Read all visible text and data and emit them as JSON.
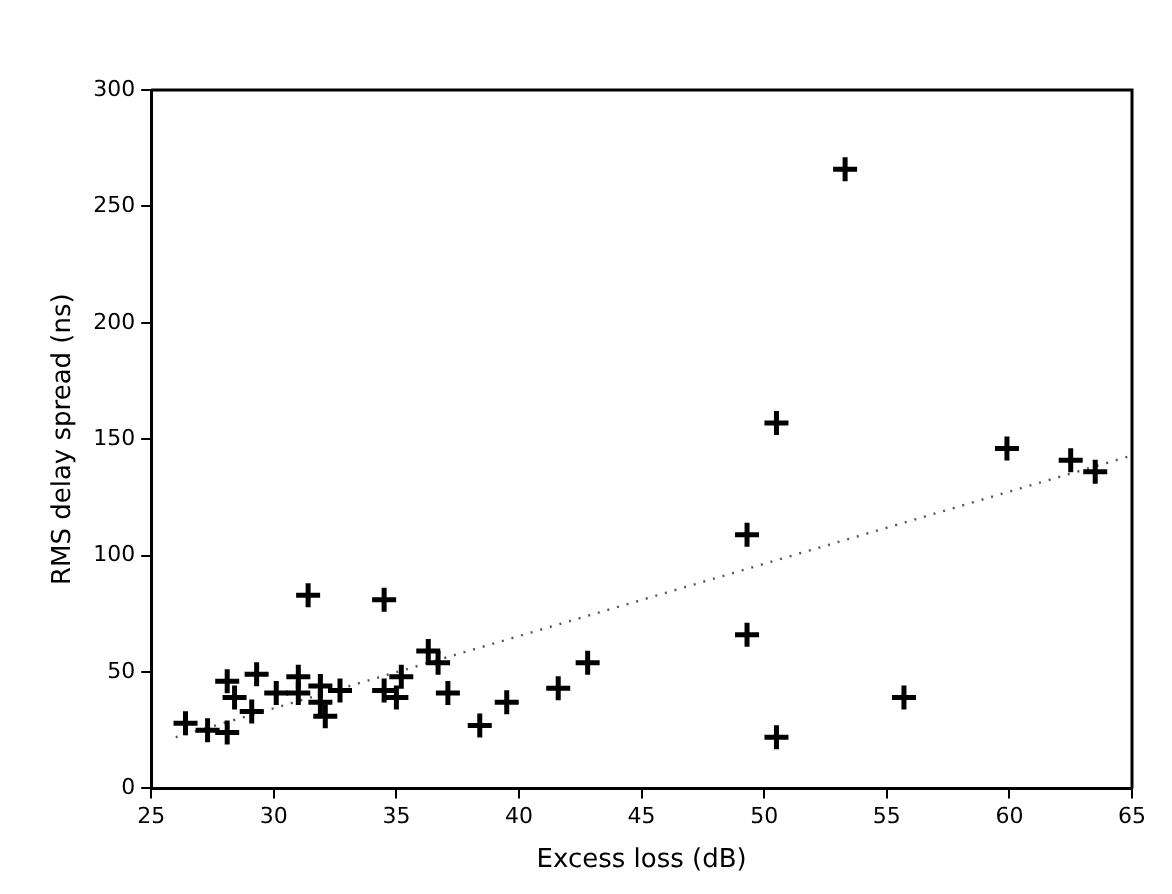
{
  "chart_data": {
    "type": "scatter",
    "xlabel": "Excess loss (dB)",
    "ylabel": "RMS delay spread (ns)",
    "xlim": [
      25,
      65
    ],
    "xticks": [
      25,
      30,
      35,
      40,
      45,
      50,
      55,
      60,
      65
    ],
    "ylim": [
      0,
      300
    ],
    "yticks": [
      0,
      50,
      100,
      150,
      200,
      250,
      300
    ],
    "grid": false,
    "legend": false,
    "series": [
      {
        "marker": "cross",
        "color": "#000000",
        "x": [
          26.4,
          27.3,
          28.1,
          28.1,
          28.4,
          29.1,
          29.3,
          30.1,
          31.0,
          31.0,
          31.4,
          31.9,
          31.9,
          32.1,
          32.7,
          34.5,
          34.5,
          35.0,
          35.2,
          36.3,
          36.7,
          37.1,
          38.4,
          39.5,
          41.6,
          42.8,
          49.3,
          49.3,
          50.5,
          50.5,
          53.3,
          55.7,
          59.9,
          62.5,
          63.5
        ],
        "values": [
          28,
          25,
          46,
          24,
          39,
          33,
          49,
          41,
          48,
          41,
          83,
          44,
          37,
          31,
          42,
          42,
          81,
          39,
          48,
          59,
          54,
          41,
          27,
          37,
          43,
          54,
          109,
          66,
          157,
          22,
          266,
          39,
          146,
          141,
          136
        ]
      },
      {
        "type": "line",
        "marker": "none",
        "line_style": "dotted",
        "color": "#555555",
        "x": [
          26,
          65
        ],
        "values": [
          22,
          143
        ]
      }
    ]
  }
}
